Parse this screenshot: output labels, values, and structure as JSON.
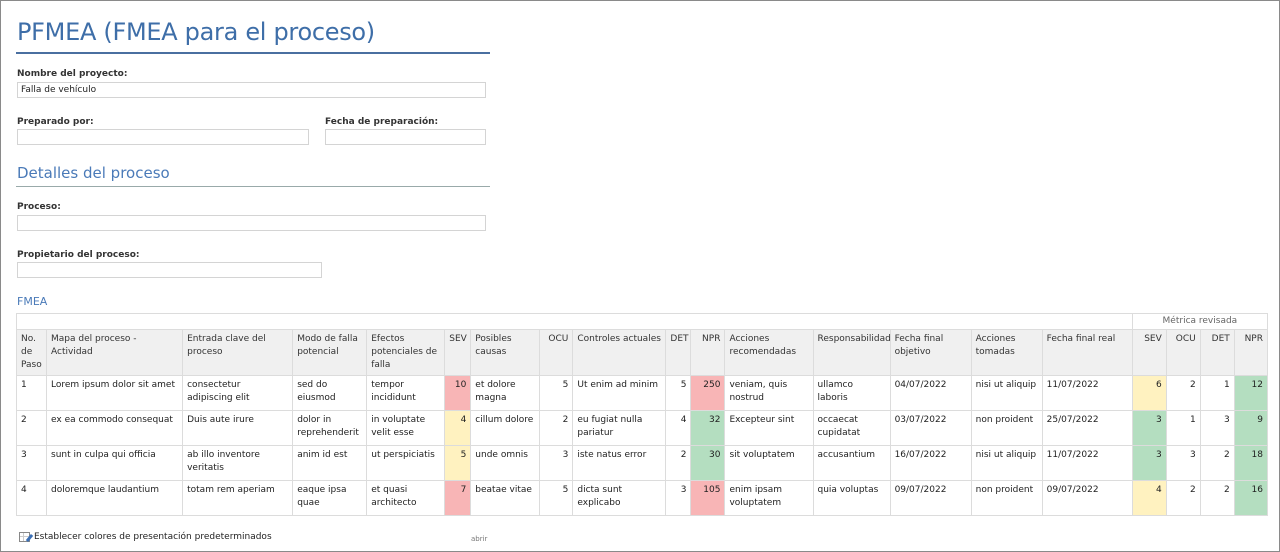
{
  "title": "PFMEA (FMEA para el proceso)",
  "project": {
    "label": "Nombre del proyecto:",
    "value": "Falla de vehículo"
  },
  "prepared_by": {
    "label": "Preparado por:",
    "value": ""
  },
  "prep_date": {
    "label": "Fecha de preparación:",
    "value": ""
  },
  "details_title": "Detalles del proceso",
  "process": {
    "label": "Proceso:",
    "value": ""
  },
  "owner": {
    "label": "Propietario del proceso:",
    "value": ""
  },
  "fmea_title": "FMEA",
  "table": {
    "group_header": "Métrica revisada",
    "headers": [
      "No. de Paso",
      "Mapa del proceso - Actividad",
      "Entrada clave del proceso",
      "Modo de falla potencial",
      "Efectos potenciales de falla",
      "SEV",
      "Posibles causas",
      "OCU",
      "Controles actuales",
      "DET",
      "NPR",
      "Acciones recomendadas",
      "Responsabilidad",
      "Fecha final objetivo",
      "Acciones tomadas",
      "Fecha final real",
      "SEV",
      "OCU",
      "DET",
      "NPR"
    ],
    "rows": [
      [
        "1",
        "Lorem ipsum dolor sit amet",
        "consectetur adipiscing elit",
        "sed do eiusmod",
        "tempor incididunt",
        "10",
        "et dolore magna",
        "5",
        "Ut enim ad minim",
        "5",
        "250",
        "veniam, quis nostrud",
        "ullamco laboris",
        "04/07/2022",
        "nisi ut aliquip",
        "11/07/2022",
        "6",
        "2",
        "1",
        "12"
      ],
      [
        "2",
        "ex ea commodo consequat",
        "Duis aute irure",
        "dolor in reprehenderit",
        "in voluptate velit esse",
        "4",
        "cillum dolore",
        "2",
        "eu fugiat nulla pariatur",
        "4",
        "32",
        "Excepteur sint",
        "occaecat cupidatat",
        "03/07/2022",
        "non proident",
        "25/07/2022",
        "3",
        "1",
        "3",
        "9"
      ],
      [
        "3",
        "sunt in culpa qui officia",
        "ab illo inventore veritatis",
        "anim id est",
        "ut perspiciatis",
        "5",
        "unde omnis",
        "3",
        "iste natus error",
        "2",
        "30",
        "sit voluptatem",
        "accusantium",
        "16/07/2022",
        "nisi ut aliquip",
        "11/07/2022",
        "3",
        "3",
        "2",
        "18"
      ],
      [
        "4",
        "doloremque laudantium",
        "totam rem aperiam",
        "eaque ipsa quae",
        "et quasi architecto",
        "7",
        "beatae vitae",
        "5",
        "dicta sunt explicabo",
        "3",
        "105",
        "enim ipsam voluptatem",
        "quia voluptas",
        "09/07/2022",
        "non proident",
        "09/07/2022",
        "4",
        "2",
        "2",
        "16"
      ]
    ],
    "cell_colors": [
      {
        "5": "red",
        "10": "red",
        "16": "yellow",
        "19": "green"
      },
      {
        "5": "yellow",
        "10": "green",
        "16": "green",
        "19": "green"
      },
      {
        "5": "yellow",
        "10": "green",
        "16": "green",
        "19": "green"
      },
      {
        "5": "red",
        "10": "red",
        "16": "yellow",
        "19": "green"
      }
    ],
    "color_hex": {
      "red": "#f8b5b6",
      "yellow": "#fff2c0",
      "green": "#b4dec0"
    }
  },
  "footer": {
    "icon": "table-edit-icon",
    "label": "Establecer colores de presentación predeterminados",
    "open": "abrir"
  }
}
